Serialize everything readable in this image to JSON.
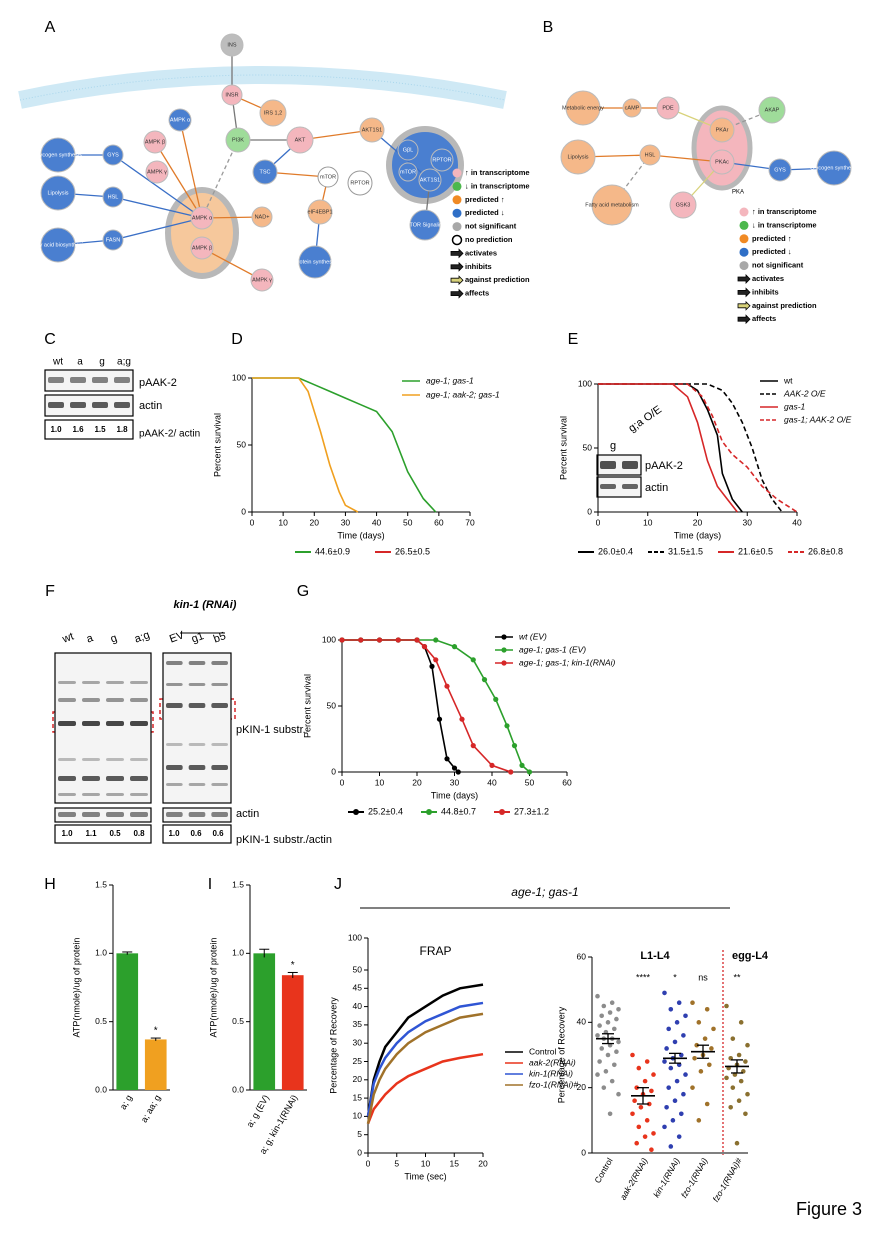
{
  "figure_label": "Figure 3",
  "panel_labels": [
    "A",
    "B",
    "C",
    "D",
    "E",
    "F",
    "G",
    "H",
    "I",
    "J"
  ],
  "pathway_a": {
    "nodes": [
      {
        "label": "INS",
        "color": "#bdbdbd"
      },
      {
        "label": "INSR",
        "color": "#f4b6bd"
      },
      {
        "label": "IRS 1,2",
        "color": "#f5b889"
      },
      {
        "label": "AMPK α",
        "color": "#4a7fd0"
      },
      {
        "label": "PI3K",
        "color": "#9fdc9a"
      },
      {
        "label": "AKT",
        "color": "#f4b6bd"
      },
      {
        "label": "AKT1S1",
        "color": "#f5b889"
      },
      {
        "label": "AMPK β",
        "color": "#f4b6bd"
      },
      {
        "label": "AMPK γ",
        "color": "#f4b6bd"
      },
      {
        "label": "TSC",
        "color": "#4a7fd0"
      },
      {
        "label": "mTOR",
        "color": "#ffffff"
      },
      {
        "label": "RPTOR",
        "color": "#ffffff"
      },
      {
        "label": "GβL",
        "color": "#4a7fd0"
      },
      {
        "label": "mTOR",
        "color": "#4a7fd0"
      },
      {
        "label": "RPTOR",
        "color": "#4a7fd0"
      },
      {
        "label": "AKT1S1",
        "color": "#4a7fd0"
      },
      {
        "label": "GYS",
        "color": "#4a7fd0"
      },
      {
        "label": "Glycogen synthesis",
        "color": "#4a7fd0"
      },
      {
        "label": "HSL",
        "color": "#4a7fd0"
      },
      {
        "label": "Lipolysis",
        "color": "#4a7fd0"
      },
      {
        "label": "FASN",
        "color": "#4a7fd0"
      },
      {
        "label": "Fatty acid biosynthesis",
        "color": "#4a7fd0"
      },
      {
        "label": "AMPK α",
        "color": "#f4b6bd"
      },
      {
        "label": "AMPK β",
        "color": "#f4b6bd"
      },
      {
        "label": "NAD+",
        "color": "#f5b889"
      },
      {
        "label": "eIF4EBP1",
        "color": "#f5b889"
      },
      {
        "label": "AMPK γ",
        "color": "#f4b6bd"
      },
      {
        "label": "Protein synthesis",
        "color": "#4a7fd0"
      },
      {
        "label": "mTOR Signaling",
        "color": "#4a7fd0"
      }
    ],
    "legend": [
      {
        "label": "↑ in transcriptome",
        "color": "#f4b6bd",
        "marker": "circle"
      },
      {
        "label": "↓ in transcriptome",
        "color": "#4cb84c",
        "marker": "circle"
      },
      {
        "label": "predicted ↑",
        "color": "#f08a24",
        "marker": "circle"
      },
      {
        "label": "predicted ↓",
        "color": "#2f6fc7",
        "marker": "circle"
      },
      {
        "label": "not significant",
        "color": "#a8a8a8",
        "marker": "circle"
      },
      {
        "label": "no prediction",
        "color": "#ffffff",
        "marker": "circle"
      },
      {
        "label": "activates",
        "color": "#222222",
        "marker": "arrow"
      },
      {
        "label": "inhibits",
        "color": "#222222",
        "marker": "arrow"
      },
      {
        "label": "against prediction",
        "color": "#d8d27a",
        "marker": "arrow"
      },
      {
        "label": "affects",
        "color": "#222222",
        "marker": "arrow"
      }
    ]
  },
  "pathway_b": {
    "nodes": [
      {
        "label": "Metabolic energy",
        "color": "#f5b889"
      },
      {
        "label": "cAMP",
        "color": "#f5b889"
      },
      {
        "label": "PDE",
        "color": "#f4b6bd"
      },
      {
        "label": "AKAP",
        "color": "#9fdc9a"
      },
      {
        "label": "PKAr",
        "color": "#f5b889"
      },
      {
        "label": "PKAc",
        "color": "#f4b6bd"
      },
      {
        "label": "Lipolysis",
        "color": "#f5b889"
      },
      {
        "label": "HSL",
        "color": "#f5b889"
      },
      {
        "label": "GYS",
        "color": "#4a7fd0"
      },
      {
        "label": "Glycogen synthesis",
        "color": "#4a7fd0"
      },
      {
        "label": "Fatty acid metabolism",
        "color": "#f5b889"
      },
      {
        "label": "GSK3",
        "color": "#f4b6bd"
      }
    ],
    "complex_label": "PKA",
    "legend": [
      {
        "label": "↑ in transcriptome",
        "color": "#f4b6bd",
        "marker": "circle"
      },
      {
        "label": "↓ in transcriptome",
        "color": "#4cb84c",
        "marker": "circle"
      },
      {
        "label": "predicted ↑",
        "color": "#f08a24",
        "marker": "circle"
      },
      {
        "label": "predicted ↓",
        "color": "#2f6fc7",
        "marker": "circle"
      },
      {
        "label": "not significant",
        "color": "#a8a8a8",
        "marker": "circle"
      },
      {
        "label": "activates",
        "color": "#222222",
        "marker": "arrow"
      },
      {
        "label": "inhibits",
        "color": "#222222",
        "marker": "arrow"
      },
      {
        "label": "against prediction",
        "color": "#d8d27a",
        "marker": "arrow"
      },
      {
        "label": "affects",
        "color": "#222222",
        "marker": "arrow"
      }
    ]
  },
  "blot_c": {
    "lanes": [
      "wt",
      "a",
      "g",
      "a;g"
    ],
    "row_labels": [
      "pAAK-2",
      "actin"
    ],
    "ratio_label": "pAAK-2/ actin",
    "ratios": [
      "1.0",
      "1.6",
      "1.5",
      "1.8"
    ]
  },
  "blot_e_inset": {
    "lanes": [
      "g",
      "g;a O/E"
    ],
    "row_labels": [
      "pAAK-2",
      "actin"
    ]
  },
  "blot_f": {
    "group_label": "kin-1 (RNAi)",
    "lanes": [
      "wt",
      "a",
      "g",
      "a;g",
      "EV",
      "g1",
      "b5"
    ],
    "row_labels": [
      "pKIN-1 substr.",
      "actin"
    ],
    "ratio_label": "pKIN-1 substr./actin",
    "ratios": [
      "1.0",
      "1.1",
      "0.5",
      "0.8",
      "1.0",
      "0.6",
      "0.6"
    ]
  },
  "j_header": "age-1; gas-1",
  "chart_data": [
    {
      "type": "line",
      "xlabel": "Time (days)",
      "ylabel": "Percent survival",
      "xlim": [
        0,
        70
      ],
      "xticks": [
        0,
        10,
        20,
        30,
        40,
        50,
        60,
        70
      ],
      "ylim": [
        0,
        100
      ],
      "yticks": [
        0,
        50,
        100
      ],
      "series": [
        {
          "name": "age-1; gas-1",
          "color": "#2ca02c",
          "stat": "44.6±0.9",
          "stat_color": "#2ca02c",
          "x": [
            0,
            15,
            20,
            25,
            30,
            35,
            40,
            45,
            50,
            55,
            59
          ],
          "values": [
            100,
            100,
            95,
            90,
            85,
            80,
            75,
            60,
            30,
            10,
            0
          ]
        },
        {
          "name": "age-1; aak-2; gas-1",
          "color": "#f0a020",
          "stat": "26.5±0.5",
          "stat_color": "#d62728",
          "x": [
            0,
            15,
            18,
            20,
            22,
            25,
            28,
            30,
            34
          ],
          "values": [
            100,
            100,
            90,
            75,
            60,
            35,
            15,
            5,
            0
          ]
        }
      ]
    },
    {
      "type": "line",
      "xlabel": "Time (days)",
      "ylabel": "Percent survival",
      "xlim": [
        0,
        40
      ],
      "xticks": [
        0,
        10,
        20,
        30,
        40
      ],
      "ylim": [
        0,
        100
      ],
      "yticks": [
        0,
        50,
        100
      ],
      "series": [
        {
          "name": "wt",
          "color": "#000000",
          "dashed": false,
          "stat": "26.0±0.4",
          "x": [
            0,
            18,
            20,
            22,
            24,
            25,
            27,
            29
          ],
          "values": [
            100,
            100,
            95,
            80,
            60,
            30,
            10,
            0
          ]
        },
        {
          "name": "AAK-2 O/E",
          "color": "#000000",
          "dashed": true,
          "stat": "31.5±1.5",
          "x": [
            0,
            22,
            25,
            27,
            29,
            31,
            33,
            35,
            37
          ],
          "values": [
            100,
            100,
            95,
            85,
            70,
            50,
            25,
            10,
            0
          ]
        },
        {
          "name": "gas-1",
          "color": "#d62728",
          "dashed": false,
          "stat": "21.6±0.5",
          "x": [
            0,
            15,
            18,
            20,
            22,
            24,
            26,
            28
          ],
          "values": [
            100,
            100,
            90,
            70,
            40,
            20,
            10,
            0
          ]
        },
        {
          "name": "gas-1; AAK-2 O/E",
          "color": "#d62728",
          "dashed": true,
          "stat": "26.8±0.8",
          "x": [
            0,
            18,
            21,
            23,
            25,
            27,
            30,
            33,
            36,
            40
          ],
          "values": [
            100,
            100,
            90,
            75,
            55,
            45,
            35,
            20,
            10,
            0
          ]
        }
      ]
    },
    {
      "type": "line",
      "markers": true,
      "xlabel": "Time (days)",
      "ylabel": "Percent survival",
      "xlim": [
        0,
        60
      ],
      "xticks": [
        0,
        10,
        20,
        30,
        40,
        50,
        60
      ],
      "ylim": [
        0,
        100
      ],
      "yticks": [
        0,
        50,
        100
      ],
      "series": [
        {
          "name": "wt (EV)",
          "color": "#000000",
          "stat": "25.2±0.4",
          "x": [
            0,
            5,
            10,
            15,
            20,
            22,
            24,
            26,
            28,
            30,
            31
          ],
          "values": [
            100,
            100,
            100,
            100,
            100,
            95,
            80,
            40,
            10,
            3,
            0
          ]
        },
        {
          "name": "age-1; gas-1 (EV)",
          "color": "#2ca02c",
          "stat": "44.8±0.7",
          "x": [
            0,
            5,
            10,
            15,
            20,
            25,
            30,
            35,
            38,
            41,
            44,
            46,
            48,
            50
          ],
          "values": [
            100,
            100,
            100,
            100,
            100,
            100,
            95,
            85,
            70,
            55,
            35,
            20,
            5,
            0
          ]
        },
        {
          "name": "age-1; gas-1; kin-1(RNAi)",
          "color": "#d62728",
          "stat": "27.3±1.2",
          "x": [
            0,
            5,
            10,
            15,
            20,
            22,
            25,
            28,
            32,
            35,
            40,
            45
          ],
          "values": [
            100,
            100,
            100,
            100,
            100,
            95,
            85,
            65,
            40,
            20,
            5,
            0
          ]
        }
      ]
    },
    {
      "type": "bar",
      "ylabel": "ATP(nmole)/ug of protein",
      "categories": [
        "a; g",
        "a; aa; g"
      ],
      "values": [
        1.0,
        0.37
      ],
      "errors": [
        0.01,
        0.01
      ],
      "colors": [
        "#2ca02c",
        "#f0a020"
      ],
      "annotations": [
        null,
        "*"
      ],
      "ylim": [
        0,
        1.5
      ],
      "yticks": [
        {
          "value": 0,
          "label": "0.0"
        },
        {
          "value": 0.5,
          "label": "0.5"
        },
        {
          "value": 1,
          "label": "1.0"
        },
        {
          "value": 1.5,
          "label": "1.5"
        }
      ]
    },
    {
      "type": "bar",
      "ylabel": "ATP(nmole)/ug of protein",
      "categories": [
        "a; g (EV)",
        "a; g; kin-1(RNAi)"
      ],
      "values": [
        1.0,
        0.84
      ],
      "errors": [
        0.03,
        0.02
      ],
      "colors": [
        "#2ca02c",
        "#e8341c"
      ],
      "annotations": [
        null,
        "*"
      ],
      "ylim": [
        0,
        1.5
      ],
      "yticks": [
        {
          "value": 0,
          "label": "0.0"
        },
        {
          "value": 0.5,
          "label": "0.5"
        },
        {
          "value": 1,
          "label": "1.0"
        },
        {
          "value": 1.5,
          "label": "1.5"
        }
      ]
    },
    {
      "type": "line",
      "title": "FRAP",
      "axis_break": true,
      "xlabel": "Time (sec)",
      "ylabel": "Percentage of Recovery",
      "xlim": [
        0,
        20
      ],
      "xticks": [
        0,
        5,
        10,
        15,
        20
      ],
      "ylim": [
        0,
        100
      ],
      "yticks": [
        0,
        5,
        10,
        15,
        20,
        25,
        30,
        35,
        40,
        45,
        50,
        100
      ],
      "series": [
        {
          "name": "Control",
          "color": "#000000",
          "x": [
            0,
            1,
            2,
            3,
            5,
            7,
            10,
            13,
            16,
            20
          ],
          "values": [
            10,
            20,
            25,
            29,
            33,
            37,
            40,
            43,
            45,
            46
          ]
        },
        {
          "name": "aak-2(RNAi)",
          "color": "#e8341c",
          "x": [
            0,
            1,
            2,
            3,
            5,
            7,
            10,
            13,
            16,
            20
          ],
          "values": [
            8,
            12,
            14,
            16,
            19,
            21,
            23,
            25,
            26,
            27
          ]
        },
        {
          "name": "kin-1(RNAi)",
          "color": "#2f55d4",
          "x": [
            0,
            1,
            2,
            3,
            5,
            7,
            10,
            13,
            16,
            20
          ],
          "values": [
            10,
            19,
            23,
            26,
            30,
            33,
            36,
            38,
            40,
            41
          ]
        },
        {
          "name": "fzo-1(RNAi)#",
          "color": "#a0722a",
          "x": [
            0,
            1,
            2,
            3,
            5,
            7,
            10,
            13,
            16,
            20
          ],
          "values": [
            8,
            16,
            20,
            23,
            27,
            30,
            33,
            35,
            37,
            38
          ]
        }
      ]
    },
    {
      "type": "dot",
      "ylabel": "Percentage of Recovery",
      "ylim": [
        0,
        60
      ],
      "yticks": [
        0,
        20,
        40,
        60
      ],
      "group_labels": [
        "L1-L4",
        "egg-L4"
      ],
      "series": [
        {
          "name": "Control",
          "color": "#8c8c8c",
          "mean": 35,
          "sem": 1.5,
          "annotation": null,
          "values": [
            48,
            46,
            45,
            44,
            43,
            42,
            41,
            40,
            39,
            38,
            37,
            36,
            35,
            35,
            34,
            33,
            32,
            31,
            30,
            28,
            27,
            25,
            24,
            22,
            20,
            18,
            12
          ]
        },
        {
          "name": "aak-2(RNAi)",
          "color": "#e8341c",
          "mean": 17.5,
          "sem": 2.5,
          "annotation": "****",
          "values": [
            30,
            28,
            26,
            24,
            22,
            20,
            19,
            18,
            16,
            15,
            14,
            12,
            10,
            8,
            6,
            5,
            3,
            1
          ]
        },
        {
          "name": "kin-1(RNAi)",
          "color": "#2f3fb0",
          "mean": 29,
          "sem": 1.5,
          "annotation": "*",
          "values": [
            49,
            46,
            44,
            42,
            40,
            38,
            36,
            34,
            32,
            30,
            29,
            28,
            27,
            26,
            24,
            22,
            20,
            18,
            16,
            14,
            12,
            10,
            8,
            5,
            2
          ]
        },
        {
          "name": "fzo-1(RNAi)",
          "color": "#a0722a",
          "mean": 31,
          "sem": 2,
          "annotation": "ns",
          "values": [
            46,
            44,
            40,
            38,
            35,
            33,
            32,
            30,
            29,
            27,
            25,
            20,
            15,
            10
          ]
        },
        {
          "name": "fzo-1(RNAi)#",
          "color": "#8a7030",
          "mean": 26.5,
          "sem": 2,
          "annotation": "**",
          "values": [
            45,
            40,
            35,
            33,
            30,
            29,
            28,
            27,
            26,
            25,
            24,
            23,
            22,
            20,
            18,
            16,
            14,
            12,
            3
          ]
        }
      ]
    }
  ]
}
